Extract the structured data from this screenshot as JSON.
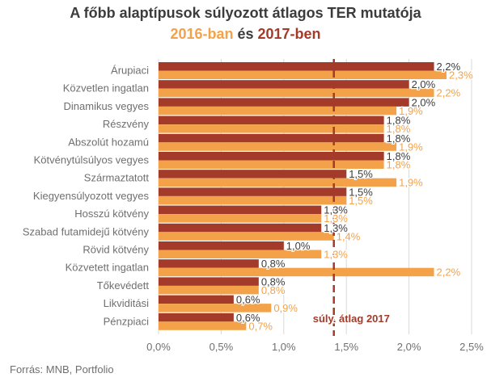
{
  "title": "A főbb alaptípusok súlyozott átlagos TER mutatója",
  "subtitle": {
    "part1": "2016-ban",
    "part2": " és ",
    "part3": "2017-ben"
  },
  "source": "Forrás: MNB, Portfolio",
  "colors": {
    "series_2016": "#a33a2a",
    "series_2017": "#f4a24a",
    "average_line": "#a33a2a",
    "category_text": "#6f6f6f",
    "gridline": "#d9d9d9"
  },
  "chart_data": {
    "type": "bar",
    "orientation": "horizontal",
    "categories": [
      "Árupiaci",
      "Közvetlen ingatlan",
      "Dinamikus vegyes",
      "Részvény",
      "Abszolút hozamú",
      "Kötvénytúlsúlyos vegyes",
      "Származtatott",
      "Kiegyensúlyozott vegyes",
      "Hosszú kötvény",
      "Szabad futamidejű kötvény",
      "Rövid kötvény",
      "Közvetett ingatlan",
      "Tőkevédett",
      "Likviditási",
      "Pénzpiaci"
    ],
    "series": [
      {
        "name": "2016-ban",
        "values": [
          2.2,
          2.0,
          2.0,
          1.8,
          1.8,
          1.8,
          1.5,
          1.5,
          1.3,
          1.3,
          1.0,
          0.8,
          0.8,
          0.6,
          0.6
        ],
        "labels": [
          "2,2%",
          "2,0%",
          "2,0%",
          "1,8%",
          "1,8%",
          "1,8%",
          "1,5%",
          "1,5%",
          "1,3%",
          "1,3%",
          "1,0%",
          "0,8%",
          "0,8%",
          "0,6%",
          "0,6%"
        ]
      },
      {
        "name": "2017-ben",
        "values": [
          2.3,
          2.2,
          1.9,
          1.8,
          1.9,
          1.8,
          1.9,
          1.5,
          1.3,
          1.4,
          1.3,
          2.2,
          0.8,
          0.9,
          0.7
        ],
        "labels": [
          "2,3%",
          "2,2%",
          "1,9%",
          "1,8%",
          "1,9%",
          "1,8%",
          "1,9%",
          "1,5%",
          "1,3%",
          "1,4%",
          "1,3%",
          "2,2%",
          "0,8%",
          "0,9%",
          "0,7%"
        ]
      }
    ],
    "xlim": [
      0,
      2.5
    ],
    "xticks": [
      0,
      0.5,
      1.0,
      1.5,
      2.0,
      2.5
    ],
    "xtick_labels": [
      "0,0%",
      "0,5%",
      "1,0%",
      "1,5%",
      "2,0%",
      "2,5%"
    ],
    "grid": true,
    "average_line": {
      "value": 1.4,
      "label": "súly. átlag 2017"
    }
  }
}
